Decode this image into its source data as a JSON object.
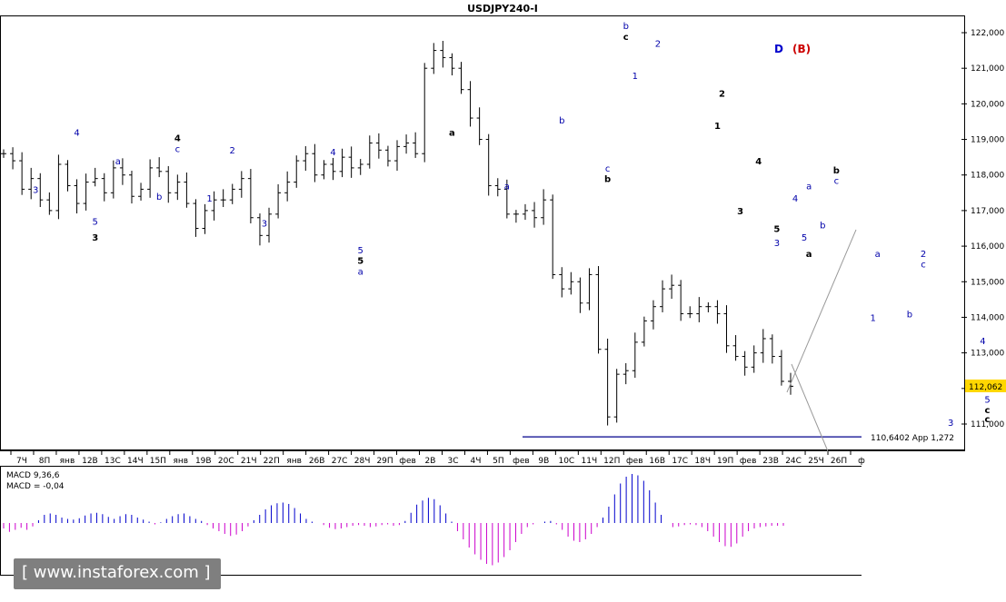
{
  "window_title": "USDJPY240-I",
  "chart_data": {
    "type": "candlestick",
    "symbol": "USDJPY240-I",
    "ylim": [
      110.4,
      122.3
    ],
    "y_ticks": [
      "122,000",
      "121,000",
      "120,000",
      "119,000",
      "118,000",
      "117,000",
      "116,000",
      "115,000",
      "114,000",
      "113,000",
      "112,000",
      "111,000"
    ],
    "current_price": "112,062",
    "x_ticks": [
      "7Ч",
      "8П",
      "янв",
      "12В",
      "13С",
      "14Ч",
      "15П",
      "янв",
      "19В",
      "20С",
      "21Ч",
      "22П",
      "янв",
      "26В",
      "27С",
      "28Ч",
      "29П",
      "фев",
      "2В",
      "3С",
      "4Ч",
      "5П",
      "фев",
      "9В",
      "10С",
      "11Ч",
      "12П",
      "фев",
      "16В",
      "17С",
      "18Ч",
      "19П",
      "фев",
      "23В",
      "24С",
      "25Ч",
      "26П",
      "ф"
    ],
    "closes": [
      118.6,
      118.4,
      117.6,
      117.9,
      117.3,
      117.0,
      118.3,
      117.7,
      117.2,
      117.8,
      117.9,
      117.5,
      118.2,
      118.0,
      117.4,
      117.6,
      118.2,
      118.1,
      117.5,
      117.8,
      117.2,
      116.5,
      117.0,
      117.3,
      117.3,
      117.6,
      117.9,
      116.8,
      116.3,
      116.9,
      117.5,
      117.8,
      118.4,
      118.6,
      118.0,
      118.3,
      118.1,
      118.5,
      118.2,
      118.3,
      118.9,
      118.7,
      118.4,
      118.8,
      118.9,
      118.6,
      121.0,
      121.5,
      121.3,
      121.0,
      120.4,
      119.6,
      119.0,
      117.7,
      117.6,
      116.9,
      116.9,
      117.0,
      116.8,
      117.3,
      115.2,
      114.8,
      115.0,
      114.4,
      115.2,
      113.1,
      111.2,
      112.4,
      112.5,
      113.3,
      113.9,
      114.3,
      114.8,
      114.9,
      114.1,
      114.1,
      114.3,
      114.3,
      114.1,
      113.2,
      112.9,
      112.6,
      113.0,
      113.4,
      112.9,
      112.2,
      112.062
    ],
    "horizontal_level": {
      "value": 110.64,
      "label": "110,6402 App 1,272"
    },
    "top_labels": [
      {
        "text": "D",
        "color": "#0000cc"
      },
      {
        "text": "(B)",
        "color": "#cc0000"
      }
    ],
    "wave_labels": [
      {
        "text": "3",
        "x": 3.5,
        "y": 117.5,
        "color": "#0000aa"
      },
      {
        "text": "4",
        "x": 8,
        "y": 119.1,
        "color": "#0000aa"
      },
      {
        "text": "5",
        "x": 10,
        "y": 116.6,
        "color": "#0000aa"
      },
      {
        "text": "3",
        "x": 10,
        "y": 116.15,
        "color": "#000000"
      },
      {
        "text": "a",
        "x": 12.5,
        "y": 118.3,
        "color": "#0000aa"
      },
      {
        "text": "b",
        "x": 17,
        "y": 117.3,
        "color": "#0000aa"
      },
      {
        "text": "4",
        "x": 19,
        "y": 118.95,
        "color": "#000000"
      },
      {
        "text": "c",
        "x": 19,
        "y": 118.65,
        "color": "#0000aa"
      },
      {
        "text": "1",
        "x": 22.5,
        "y": 117.25,
        "color": "#0000aa"
      },
      {
        "text": "2",
        "x": 25,
        "y": 118.6,
        "color": "#0000aa"
      },
      {
        "text": "3",
        "x": 28.5,
        "y": 116.55,
        "color": "#0000aa"
      },
      {
        "text": "4",
        "x": 36,
        "y": 118.55,
        "color": "#0000aa"
      },
      {
        "text": "5",
        "x": 39,
        "y": 115.8,
        "color": "#0000aa"
      },
      {
        "text": "5",
        "x": 39,
        "y": 115.5,
        "color": "#000000"
      },
      {
        "text": "a",
        "x": 39,
        "y": 115.2,
        "color": "#0000aa"
      },
      {
        "text": "a",
        "x": 49,
        "y": 119.1,
        "color": "#000000"
      },
      {
        "text": "a",
        "x": 55,
        "y": 117.6,
        "color": "#0000aa"
      },
      {
        "text": "b",
        "x": 61,
        "y": 119.45,
        "color": "#0000aa"
      },
      {
        "text": "c",
        "x": 66,
        "y": 118.1,
        "color": "#0000aa"
      },
      {
        "text": "b",
        "x": 66,
        "y": 117.8,
        "color": "#000000"
      },
      {
        "text": "b",
        "x": 68,
        "y": 122.1,
        "color": "#0000aa"
      },
      {
        "text": "c",
        "x": 68,
        "y": 121.8,
        "color": "#000000"
      },
      {
        "text": "2",
        "x": 71.5,
        "y": 121.6,
        "color": "#0000aa"
      },
      {
        "text": "1",
        "x": 69,
        "y": 120.7,
        "color": "#0000aa"
      },
      {
        "text": "2",
        "x": 78.5,
        "y": 120.2,
        "color": "#000000"
      },
      {
        "text": "1",
        "x": 78,
        "y": 119.3,
        "color": "#000000"
      },
      {
        "text": "4",
        "x": 82.5,
        "y": 118.3,
        "color": "#000000"
      },
      {
        "text": "3",
        "x": 80.5,
        "y": 116.9,
        "color": "#000000"
      },
      {
        "text": "4",
        "x": 86.5,
        "y": 117.25,
        "color": "#0000aa"
      },
      {
        "text": "5",
        "x": 84.5,
        "y": 116.4,
        "color": "#000000"
      },
      {
        "text": "3",
        "x": 84.5,
        "y": 116.0,
        "color": "#0000aa"
      },
      {
        "text": "a",
        "x": 88,
        "y": 117.6,
        "color": "#0000aa"
      },
      {
        "text": "5",
        "x": 87.5,
        "y": 116.15,
        "color": "#0000aa"
      },
      {
        "text": "b",
        "x": 89.5,
        "y": 116.5,
        "color": "#0000aa"
      },
      {
        "text": "b",
        "x": 91,
        "y": 118.05,
        "color": "#000000"
      },
      {
        "text": "c",
        "x": 91,
        "y": 117.75,
        "color": "#0000aa"
      },
      {
        "text": "a",
        "x": 88,
        "y": 115.7,
        "color": "#000000"
      },
      {
        "text": "a",
        "x": 95.5,
        "y": 115.7,
        "color": "#0000aa"
      },
      {
        "text": "2",
        "x": 100.5,
        "y": 115.7,
        "color": "#0000aa"
      },
      {
        "text": "c",
        "x": 100.5,
        "y": 115.4,
        "color": "#0000aa"
      },
      {
        "text": "1",
        "x": 95,
        "y": 113.9,
        "color": "#0000aa"
      },
      {
        "text": "b",
        "x": 99,
        "y": 114.0,
        "color": "#0000aa"
      },
      {
        "text": "4",
        "x": 107,
        "y": 113.25,
        "color": "#0000aa"
      },
      {
        "text": "5",
        "x": 107.5,
        "y": 111.6,
        "color": "#0000aa"
      },
      {
        "text": "c",
        "x": 107.5,
        "y": 111.3,
        "color": "#000000"
      },
      {
        "text": "c",
        "x": 107.5,
        "y": 111.05,
        "color": "#000000"
      },
      {
        "text": "3",
        "x": 103.5,
        "y": 110.95,
        "color": "#0000aa"
      },
      {
        "text": "1",
        "x": 115,
        "y": 115.15,
        "color": "#0000aa"
      },
      {
        "text": "?",
        "x": 135,
        "y": 111.8,
        "color": "#000000"
      },
      {
        "text": "2",
        "x": 136.5,
        "y": 111.8,
        "color": "#0000aa"
      },
      {
        "text": "?",
        "x": 150,
        "y": 117.0,
        "color": "#000000"
      },
      {
        "text": "?",
        "x": 146,
        "y": 110.55,
        "color": "#cc0000"
      }
    ],
    "wave_label_big": [
      {
        "text": "c",
        "x": 110.5,
        "y": 111.1,
        "color": "#009999"
      },
      {
        "text": "C",
        "x": 112.5,
        "y": 111.1,
        "color": "#0000aa"
      }
    ],
    "macd": {
      "label": "MACD 9,36,6",
      "value_label": "MACD = -0,04",
      "value_color": "#ff00ff",
      "values": [
        -0.08,
        -0.13,
        -0.1,
        -0.07,
        -0.1,
        -0.05,
        0.04,
        0.12,
        0.14,
        0.12,
        0.08,
        0.06,
        0.05,
        0.07,
        0.11,
        0.14,
        0.15,
        0.13,
        0.09,
        0.06,
        0.1,
        0.13,
        0.12,
        0.08,
        0.05,
        0.02,
        -0.02,
        0.01,
        0.06,
        0.1,
        0.13,
        0.14,
        0.1,
        0.06,
        0.03,
        -0.03,
        -0.08,
        -0.12,
        -0.16,
        -0.19,
        -0.17,
        -0.12,
        -0.05,
        0.04,
        0.12,
        0.2,
        0.26,
        0.29,
        0.3,
        0.28,
        0.22,
        0.14,
        0.06,
        0.02,
        0.0,
        -0.03,
        -0.07,
        -0.09,
        -0.08,
        -0.06,
        -0.04,
        -0.03,
        -0.04,
        -0.06,
        -0.05,
        -0.03,
        -0.02,
        -0.04,
        -0.03,
        0.03,
        0.15,
        0.27,
        0.33,
        0.37,
        0.35,
        0.26,
        0.14,
        0.02,
        -0.12,
        -0.24,
        -0.36,
        -0.46,
        -0.54,
        -0.6,
        -0.62,
        -0.58,
        -0.5,
        -0.4,
        -0.28,
        -0.16,
        -0.06,
        -0.02,
        0.0,
        0.02,
        0.03,
        -0.02,
        -0.1,
        -0.2,
        -0.26,
        -0.28,
        -0.24,
        -0.16,
        -0.06,
        0.08,
        0.24,
        0.42,
        0.58,
        0.68,
        0.72,
        0.7,
        0.62,
        0.48,
        0.3,
        0.12,
        0.0,
        -0.06,
        -0.05,
        -0.03,
        -0.02,
        -0.03,
        -0.06,
        -0.12,
        -0.2,
        -0.28,
        -0.34,
        -0.35,
        -0.3,
        -0.2,
        -0.12,
        -0.08,
        -0.06,
        -0.05,
        -0.04,
        -0.04,
        -0.04
      ]
    }
  },
  "watermark": "[ www.instaforex.com ]"
}
